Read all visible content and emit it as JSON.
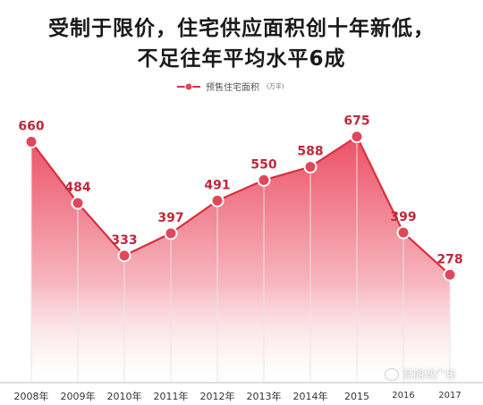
{
  "title_line1": "受制于限价，住宅供应面积创十年新低，",
  "title_line2": "不足往年平均水平6成",
  "legend": {
    "label": "预售住宅面积",
    "unit": "(万平)"
  },
  "watermark": "慧朗城广场",
  "colors": {
    "line": "#d8303f",
    "marker_fill": "#e0475a",
    "fill_top": "#e8324a",
    "fill_bottom": "#ffffff",
    "label": "#c0283a",
    "grid": "#e6e6e6"
  },
  "chart_data": {
    "type": "area",
    "title": "受制于限价，住宅供应面积创十年新低，不足往年平均水平6成",
    "xlabel": "",
    "ylabel": "",
    "categories": [
      "2008年",
      "2009年",
      "2010年",
      "2011年",
      "2012年",
      "2013年",
      "2014年",
      "2015",
      "2016",
      "2017"
    ],
    "series": [
      {
        "name": "预售住宅面积 (万平)",
        "values": [
          660,
          484,
          333,
          397,
          491,
          550,
          588,
          675,
          399,
          278
        ]
      }
    ],
    "grid": true,
    "legend_position": "top-center"
  }
}
